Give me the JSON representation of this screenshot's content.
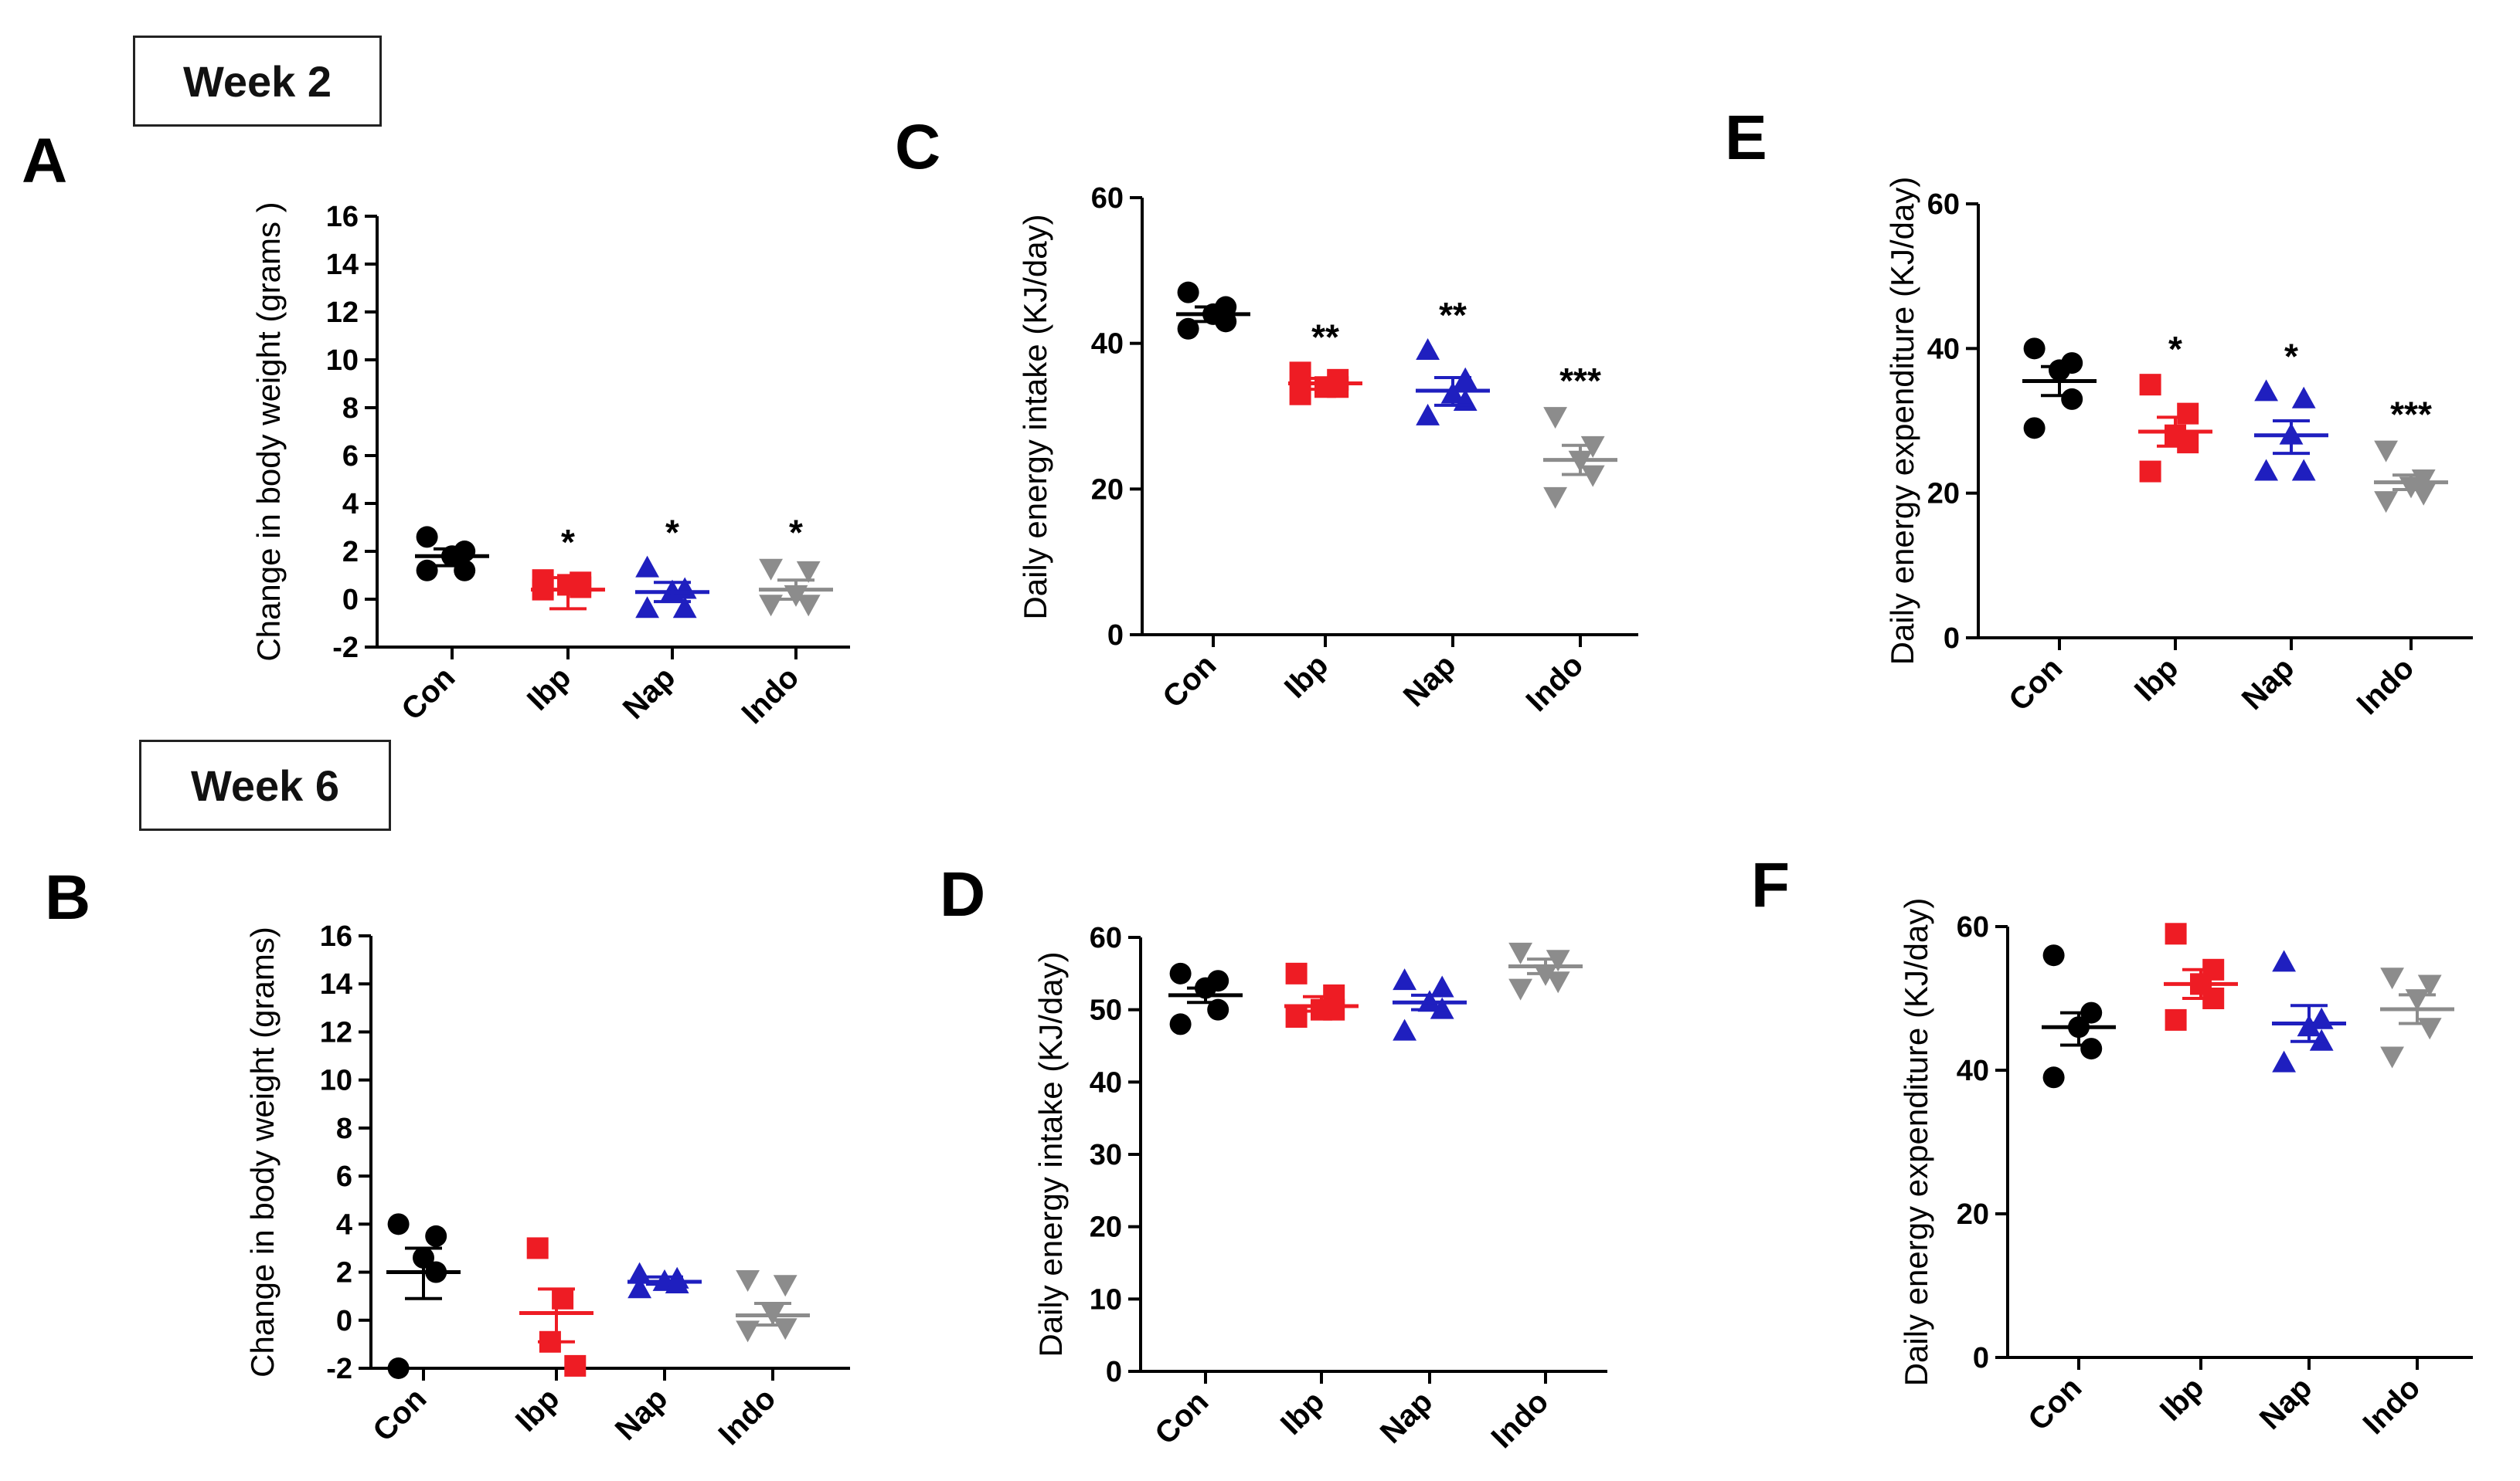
{
  "week_labels": [
    "Week 2",
    "Week 6"
  ],
  "panel_letters": [
    "A",
    "B",
    "C",
    "D",
    "E",
    "F"
  ],
  "colors": {
    "Con": "#000000",
    "Ibp": "#ee1c24",
    "Nap": "#1f1fbf",
    "Indo": "#8c8c8c"
  },
  "chart_data": [
    {
      "id": "A",
      "type": "scatter",
      "ylabel": "Change in body weight (grams )",
      "categories": [
        "Con",
        "Ibp",
        "Nap",
        "Indo"
      ],
      "ylim": [
        -2,
        16
      ],
      "yticks": [
        -2,
        0,
        2,
        4,
        6,
        8,
        10,
        12,
        14,
        16
      ],
      "series": [
        {
          "category": "Con",
          "marker": "circle",
          "points": [
            2.6,
            2.0,
            1.8,
            1.2,
            1.2
          ],
          "mean": 1.8,
          "sem_low": 1.4,
          "sem_high": 2.1,
          "sig": ""
        },
        {
          "category": "Ibp",
          "marker": "square",
          "points": [
            0.8,
            0.7,
            0.6,
            0.5,
            0.4
          ],
          "mean": 0.4,
          "sem_low": -0.4,
          "sem_high": 0.9,
          "sig": "*"
        },
        {
          "category": "Nap",
          "marker": "triangle",
          "points": [
            1.3,
            0.4,
            0.3,
            -0.4,
            -0.4
          ],
          "mean": 0.3,
          "sem_low": -0.1,
          "sem_high": 0.7,
          "sig": "*"
        },
        {
          "category": "Indo",
          "marker": "triangle-down",
          "points": [
            1.3,
            1.2,
            0.2,
            -0.2,
            -0.2
          ],
          "mean": 0.4,
          "sem_low": 0.0,
          "sem_high": 0.8,
          "sig": "*"
        }
      ]
    },
    {
      "id": "B",
      "type": "scatter",
      "ylabel": "Change in body weight (grams)",
      "categories": [
        "Con",
        "Ibp",
        "Nap",
        "Indo"
      ],
      "ylim": [
        -2,
        16
      ],
      "yticks": [
        -2,
        0,
        2,
        4,
        6,
        8,
        10,
        12,
        14,
        16
      ],
      "series": [
        {
          "category": "Con",
          "marker": "circle",
          "points": [
            4.0,
            3.5,
            2.6,
            2.0,
            -2.0
          ],
          "mean": 2.0,
          "sem_low": 0.9,
          "sem_high": 3.0,
          "sig": ""
        },
        {
          "category": "Ibp",
          "marker": "square",
          "points": [
            3.0,
            0.9,
            -0.9,
            -1.9
          ],
          "mean": 0.3,
          "sem_low": -0.9,
          "sem_high": 1.3,
          "sig": ""
        },
        {
          "category": "Nap",
          "marker": "triangle",
          "points": [
            1.9,
            1.7,
            1.6,
            1.5,
            1.3
          ],
          "mean": 1.6,
          "sem_low": 1.5,
          "sem_high": 1.8,
          "sig": ""
        },
        {
          "category": "Indo",
          "marker": "triangle-down",
          "points": [
            1.7,
            1.5,
            0.3,
            -0.3,
            -0.4
          ],
          "mean": 0.2,
          "sem_low": -0.2,
          "sem_high": 0.7,
          "sig": ""
        }
      ]
    },
    {
      "id": "C",
      "type": "scatter",
      "ylabel": "Daily energy intake (KJ/day)",
      "categories": [
        "Con",
        "Ibp",
        "Nap",
        "Indo"
      ],
      "ylim": [
        0,
        60
      ],
      "yticks": [
        0,
        20,
        40,
        60
      ],
      "series": [
        {
          "category": "Con",
          "marker": "circle",
          "points": [
            47,
            45,
            44,
            43,
            42
          ],
          "mean": 44,
          "sem_low": 43,
          "sem_high": 45,
          "sig": ""
        },
        {
          "category": "Ibp",
          "marker": "square",
          "points": [
            36,
            35,
            34,
            34,
            33
          ],
          "mean": 34.5,
          "sem_low": 33.7,
          "sem_high": 35.2,
          "sig": "**"
        },
        {
          "category": "Nap",
          "marker": "triangle",
          "points": [
            39,
            35,
            33,
            32,
            30
          ],
          "mean": 33.5,
          "sem_low": 31.5,
          "sem_high": 35.3,
          "sig": "**"
        },
        {
          "category": "Indo",
          "marker": "triangle-down",
          "points": [
            30,
            26,
            24,
            22,
            19
          ],
          "mean": 24,
          "sem_low": 22,
          "sem_high": 26,
          "sig": "***"
        }
      ]
    },
    {
      "id": "D",
      "type": "scatter",
      "ylabel": "Daily energy intake (KJ/day)",
      "categories": [
        "Con",
        "Ibp",
        "Nap",
        "Indo"
      ],
      "ylim": [
        0,
        60
      ],
      "yticks": [
        0,
        10,
        20,
        30,
        40,
        50,
        60
      ],
      "series": [
        {
          "category": "Con",
          "marker": "circle",
          "points": [
            55,
            54,
            53,
            50,
            48
          ],
          "mean": 52,
          "sem_low": 51,
          "sem_high": 53,
          "sig": ""
        },
        {
          "category": "Ibp",
          "marker": "square",
          "points": [
            55,
            52,
            50,
            50,
            49
          ],
          "mean": 50.5,
          "sem_low": 49.8,
          "sem_high": 51.8,
          "sig": ""
        },
        {
          "category": "Nap",
          "marker": "triangle",
          "points": [
            54,
            53,
            51,
            50,
            47
          ],
          "mean": 51,
          "sem_low": 50,
          "sem_high": 52,
          "sig": ""
        },
        {
          "category": "Indo",
          "marker": "triangle-down",
          "points": [
            58,
            57,
            55,
            54,
            53
          ],
          "mean": 56,
          "sem_low": 55,
          "sem_high": 57,
          "sig": ""
        }
      ]
    },
    {
      "id": "E",
      "type": "scatter",
      "ylabel": "Daily energy expenditure (KJ/day)",
      "categories": [
        "Con",
        "Ibp",
        "Nap",
        "Indo"
      ],
      "ylim": [
        0,
        60
      ],
      "yticks": [
        0,
        20,
        40,
        60
      ],
      "series": [
        {
          "category": "Con",
          "marker": "circle",
          "points": [
            40,
            38,
            37,
            33,
            29
          ],
          "mean": 35.5,
          "sem_low": 33.5,
          "sem_high": 37.5,
          "sig": ""
        },
        {
          "category": "Ibp",
          "marker": "square",
          "points": [
            35,
            31,
            28,
            27,
            23
          ],
          "mean": 28.5,
          "sem_low": 26.5,
          "sem_high": 30.5,
          "sig": "*"
        },
        {
          "category": "Nap",
          "marker": "triangle",
          "points": [
            34,
            33,
            28,
            23,
            23
          ],
          "mean": 28,
          "sem_low": 25.5,
          "sem_high": 30,
          "sig": "*"
        },
        {
          "category": "Indo",
          "marker": "triangle-down",
          "points": [
            26,
            22,
            21,
            20,
            19
          ],
          "mean": 21.5,
          "sem_low": 20.5,
          "sem_high": 22.5,
          "sig": "***"
        }
      ]
    },
    {
      "id": "F",
      "type": "scatter",
      "ylabel": "Daily energy expenditure (KJ/day)",
      "categories": [
        "Con",
        "Ibp",
        "Nap",
        "Indo"
      ],
      "ylim": [
        0,
        60
      ],
      "yticks": [
        0,
        20,
        40,
        60
      ],
      "series": [
        {
          "category": "Con",
          "marker": "circle",
          "points": [
            56,
            48,
            46,
            43,
            39
          ],
          "mean": 46,
          "sem_low": 43.5,
          "sem_high": 48,
          "sig": ""
        },
        {
          "category": "Ibp",
          "marker": "square",
          "points": [
            59,
            54,
            52,
            50,
            47
          ],
          "mean": 52,
          "sem_low": 50,
          "sem_high": 54,
          "sig": ""
        },
        {
          "category": "Nap",
          "marker": "triangle",
          "points": [
            55,
            47,
            46,
            44,
            41
          ],
          "mean": 46.5,
          "sem_low": 44,
          "sem_high": 49,
          "sig": ""
        },
        {
          "category": "Indo",
          "marker": "triangle-down",
          "points": [
            53,
            52,
            50,
            46,
            42
          ],
          "mean": 48.5,
          "sem_low": 46.5,
          "sem_high": 50.5,
          "sig": ""
        }
      ]
    }
  ]
}
